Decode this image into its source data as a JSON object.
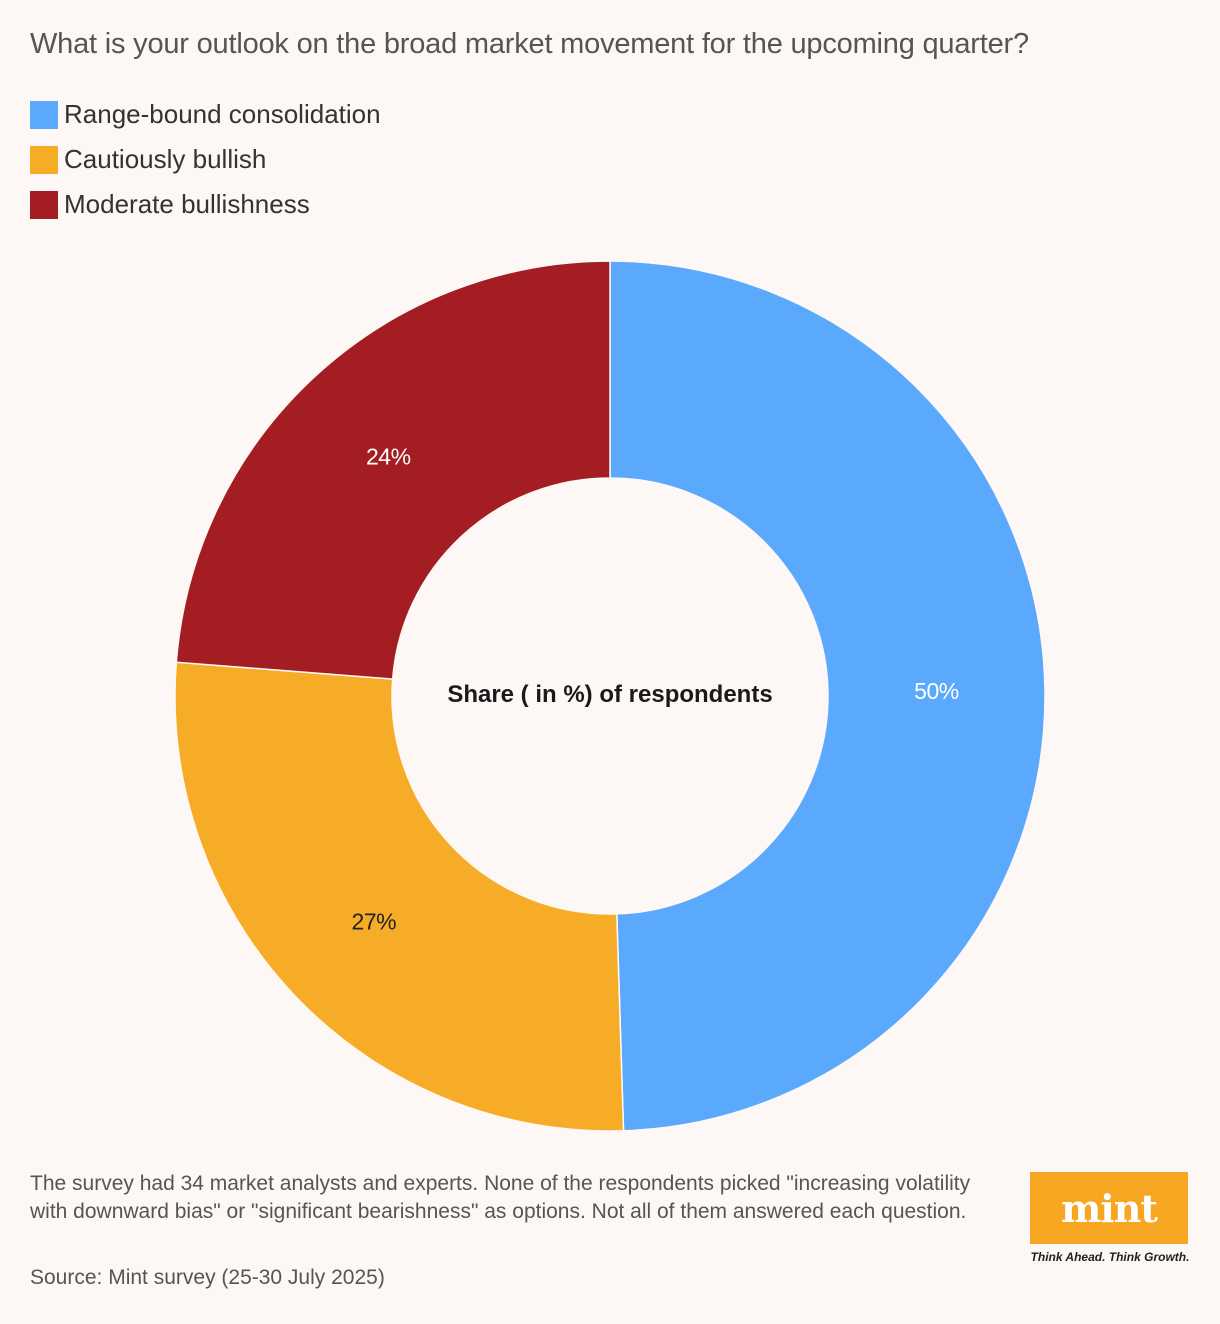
{
  "chart_data": {
    "type": "pie",
    "variant": "donut",
    "title": "What is your outlook on the broad market movement for the upcoming quarter?",
    "center_label": "Share ( in %) of respondents",
    "series": [
      {
        "name": "Range-bound consolidation",
        "value": 50,
        "label": "50%",
        "color": "#5aa9fc",
        "label_color": "#ffffff"
      },
      {
        "name": "Cautiously bullish",
        "value": 27,
        "label": "27%",
        "color": "#f7ac28",
        "label_color": "#222222"
      },
      {
        "name": "Moderate bullishness",
        "value": 24,
        "label": "24%",
        "color": "#a41d22",
        "label_color": "#ffffff"
      }
    ],
    "legend_position": "top-left"
  },
  "footnote": "The survey had 34 market analysts and experts. None of the respondents picked \"increasing volatility with downward bias\" or \"significant bearishness\" as options. Not all of them answered each question.",
  "source": "Source: Mint survey (25-30 July 2025)",
  "logo": {
    "text": "mint",
    "tagline": "Think Ahead. Think Growth.",
    "color": "#f7a621"
  }
}
